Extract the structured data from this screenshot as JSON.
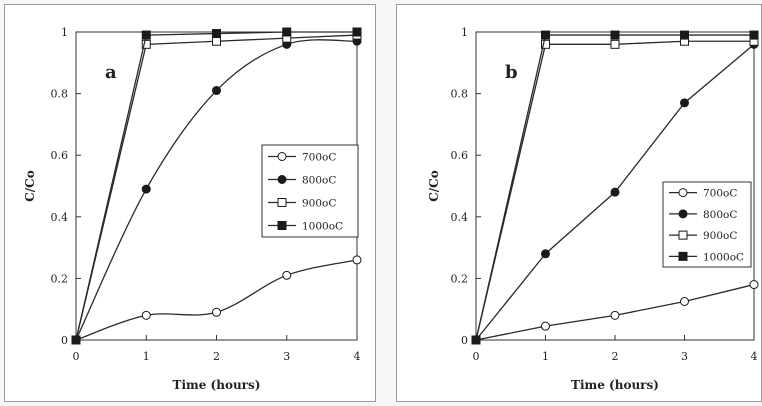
{
  "chart_data": [
    {
      "type": "line",
      "panel_label": "a",
      "xlabel": "Time (hours)",
      "ylabel": "C/Co",
      "xlim": [
        0,
        4
      ],
      "ylim": [
        0,
        1
      ],
      "x_ticks": [
        0,
        1,
        2,
        3,
        4
      ],
      "y_ticks": [
        0,
        0.2,
        0.4,
        0.6,
        0.8,
        1
      ],
      "legend_position": "right-middle",
      "grid": false,
      "series": [
        {
          "name": "700oC",
          "marker": "circle-open",
          "smooth": true,
          "x": [
            0,
            1,
            2,
            3,
            4
          ],
          "y": [
            0,
            0.08,
            0.09,
            0.21,
            0.26
          ]
        },
        {
          "name": "800oC",
          "marker": "circle-filled",
          "smooth": true,
          "x": [
            0,
            1,
            2,
            3,
            4
          ],
          "y": [
            0,
            0.49,
            0.81,
            0.96,
            0.97
          ]
        },
        {
          "name": "900oC",
          "marker": "square-open",
          "smooth": false,
          "x": [
            0,
            1,
            2,
            3,
            4
          ],
          "y": [
            0,
            0.96,
            0.97,
            0.98,
            0.99
          ]
        },
        {
          "name": "1000oC",
          "marker": "square-filled",
          "smooth": false,
          "x": [
            0,
            1,
            2,
            3,
            4
          ],
          "y": [
            0,
            0.99,
            0.995,
            1.0,
            1.0
          ]
        }
      ]
    },
    {
      "type": "line",
      "panel_label": "b",
      "xlabel": "Time (hours)",
      "ylabel": "C/Co",
      "xlim": [
        0,
        4
      ],
      "ylim": [
        0,
        1
      ],
      "x_ticks": [
        0,
        1,
        2,
        3,
        4
      ],
      "y_ticks": [
        0,
        0.2,
        0.4,
        0.6,
        0.8,
        1
      ],
      "legend_position": "right-lower",
      "grid": false,
      "series": [
        {
          "name": "700oC",
          "marker": "circle-open",
          "smooth": false,
          "x": [
            0,
            1,
            2,
            3,
            4
          ],
          "y": [
            0,
            0.045,
            0.08,
            0.125,
            0.18
          ]
        },
        {
          "name": "800oC",
          "marker": "circle-filled",
          "smooth": false,
          "x": [
            0,
            1,
            2,
            3,
            4
          ],
          "y": [
            0,
            0.28,
            0.48,
            0.77,
            0.96
          ]
        },
        {
          "name": "900oC",
          "marker": "square-open",
          "smooth": false,
          "x": [
            0,
            1,
            2,
            3,
            4
          ],
          "y": [
            0,
            0.96,
            0.96,
            0.97,
            0.97
          ]
        },
        {
          "name": "1000oC",
          "marker": "square-filled",
          "smooth": false,
          "x": [
            0,
            1,
            2,
            3,
            4
          ],
          "y": [
            0,
            0.99,
            0.99,
            0.99,
            0.99
          ]
        }
      ]
    }
  ]
}
